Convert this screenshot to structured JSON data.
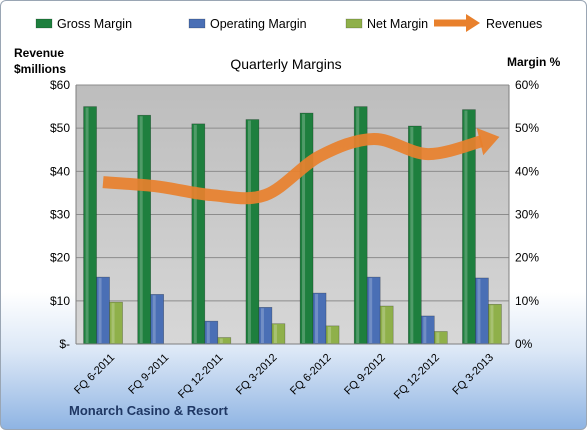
{
  "chart_data": {
    "type": "bar",
    "title": "Quarterly Margins",
    "left_axis_title_line1": "Revenue",
    "left_axis_title_line2": "$millions",
    "right_axis_title": "Margin %",
    "company": "Monarch Casino & Resort",
    "categories": [
      "FQ 6-2011",
      "FQ 9-2011",
      "FQ 12-2011",
      "FQ 3-2012",
      "FQ 6-2012",
      "FQ 9-2012",
      "FQ 12-2012",
      "FQ 3-2013"
    ],
    "series": [
      {
        "name": "Gross Margin",
        "axis": "right",
        "kind": "bar",
        "color": "#1e7f3e",
        "values": [
          55,
          53,
          51,
          52,
          53.5,
          55,
          50.5,
          54.3
        ]
      },
      {
        "name": "Operating Margin",
        "axis": "right",
        "kind": "bar",
        "color": "#4a6fb5",
        "values": [
          15.5,
          11.5,
          5.3,
          8.5,
          11.8,
          15.5,
          6.5,
          15.3
        ]
      },
      {
        "name": "Net Margin",
        "axis": "right",
        "kind": "bar",
        "color": "#8fb04a",
        "values": [
          9.7,
          0,
          1.5,
          4.7,
          4.2,
          8.8,
          2.9,
          9.2
        ]
      },
      {
        "name": "Revenues",
        "axis": "left",
        "kind": "line",
        "color": "#e8802c",
        "values": [
          37.5,
          36.5,
          34.5,
          34.5,
          43.5,
          47.5,
          44,
          47
        ]
      }
    ],
    "left_axis": {
      "min": 0,
      "max": 60,
      "ticks": [
        "$-",
        "$10",
        "$20",
        "$30",
        "$40",
        "$50",
        "$60"
      ]
    },
    "right_axis": {
      "min": 0,
      "max": 60,
      "ticks": [
        "0%",
        "10%",
        "20%",
        "30%",
        "40%",
        "50%",
        "60%"
      ]
    },
    "legend_position": "top",
    "grid": true,
    "plot_background": "#c0c0c0"
  }
}
